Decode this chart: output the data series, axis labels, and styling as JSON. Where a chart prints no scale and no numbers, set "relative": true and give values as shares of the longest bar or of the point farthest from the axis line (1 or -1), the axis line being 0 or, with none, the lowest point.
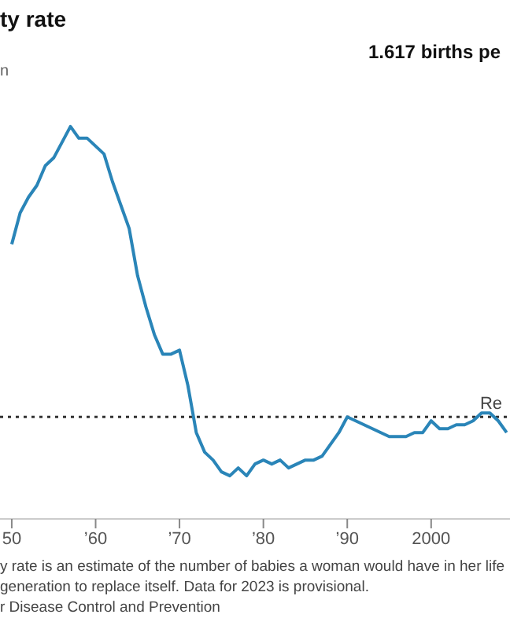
{
  "chart_data": {
    "type": "line",
    "title": "ty rate",
    "subtitle": "1.617 births pe",
    "ylabel": "n",
    "relative": true,
    "x": [
      1950,
      1951,
      1952,
      1953,
      1954,
      1955,
      1956,
      1957,
      1958,
      1959,
      1960,
      1961,
      1962,
      1963,
      1964,
      1965,
      1966,
      1967,
      1968,
      1969,
      1970,
      1971,
      1972,
      1973,
      1974,
      1975,
      1976,
      1977,
      1978,
      1979,
      1980,
      1981,
      1982,
      1983,
      1984,
      1985,
      1986,
      1987,
      1988,
      1989,
      1990,
      1991,
      1992,
      1993,
      1994,
      1995,
      1996,
      1997,
      1998,
      1999,
      2000,
      2001,
      2002,
      2003,
      2004,
      2005,
      2006,
      2007,
      2008,
      2009
    ],
    "series": [
      {
        "color": "#2a85b8",
        "values": [
          0.7,
          0.78,
          0.82,
          0.85,
          0.9,
          0.92,
          0.96,
          1,
          0.97,
          0.97,
          0.95,
          0.93,
          0.86,
          0.8,
          0.74,
          0.62,
          0.54,
          0.47,
          0.42,
          0.42,
          0.43,
          0.34,
          0.22,
          0.17,
          0.15,
          0.12,
          0.11,
          0.13,
          0.11,
          0.14,
          0.15,
          0.14,
          0.15,
          0.13,
          0.14,
          0.15,
          0.15,
          0.16,
          0.19,
          0.22,
          0.26,
          0.25,
          0.24,
          0.23,
          0.22,
          0.21,
          0.21,
          0.21,
          0.22,
          0.22,
          0.25,
          0.23,
          0.23,
          0.24,
          0.24,
          0.25,
          0.27,
          0.27,
          0.25,
          0.22
        ]
      }
    ],
    "xlim": [
      1948.6,
      2009.4
    ],
    "xticks": [
      {
        "value": 1950,
        "label": "50"
      },
      {
        "value": 1960,
        "label": "’60"
      },
      {
        "value": 1970,
        "label": "’70"
      },
      {
        "value": 1980,
        "label": "’80"
      },
      {
        "value": 1990,
        "label": "’90"
      },
      2000
    ],
    "ref_lines": [
      {
        "axis": "y",
        "value": 0.26,
        "label": "Re",
        "color": "#333333",
        "line_style": "dotted"
      }
    ],
    "legend": false,
    "annotations": [
      "y rate is an estimate of the number of babies a woman would have in her life",
      "generation to replace itself. Data for 2023 is provisional.",
      "r Disease Control and Prevention"
    ]
  }
}
